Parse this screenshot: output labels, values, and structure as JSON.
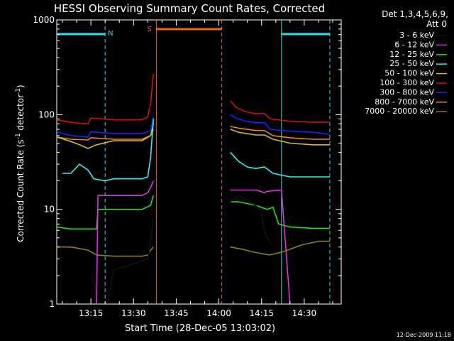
{
  "chart_data": {
    "type": "line",
    "title": "HESSI Observing Summary Count Rates, Corrected",
    "xlabel": "Start Time (28-Dec-05 13:03:02)",
    "ylabel": "Corrected Count Rate (s⁻¹ detector⁻¹)",
    "ylabel_parts": {
      "main": "Corrected Count Rate (s",
      "sup1": "-1",
      "mid": " detector",
      "sup2": "-1",
      "end": ")"
    },
    "yscale": "log",
    "ylim": [
      1,
      1000
    ],
    "xlim_minutes": [
      0,
      100
    ],
    "x_tick_minutes": [
      12,
      27,
      42,
      57,
      72,
      87
    ],
    "x_tick_labels": [
      "13:15",
      "13:30",
      "13:45",
      "14:00",
      "14:15",
      "14:30"
    ],
    "y_ticks": [
      1,
      10,
      100,
      1000
    ],
    "y_tick_labels": [
      "1",
      "10",
      "100",
      "1000"
    ],
    "legend_header": [
      "Det 1,3,4,5,6,9,",
      "Att 0"
    ],
    "footer_date": "12-Dec-2009 11:18",
    "markers": {
      "night_label": "N",
      "saa_label": "S",
      "night_color": "#33d9e6",
      "saa_color": "#f06a10",
      "night_bars": [
        [
          0,
          17
        ],
        [
          79,
          96
        ]
      ],
      "night_lines_minutes": [
        17,
        79,
        96
      ],
      "saa_bar": [
        35,
        58
      ],
      "saa_lines_minutes": [
        35,
        58
      ]
    },
    "series": [
      {
        "name": "3 - 6 keV",
        "color": "#111111",
        "segments": [
          [
            [
              18,
              1.1
            ],
            [
              20,
              2.3
            ],
            [
              26,
              2.6
            ],
            [
              32,
              3.0
            ],
            [
              33,
              4.5
            ],
            [
              34,
              8
            ]
          ],
          [
            [
              61,
              12
            ],
            [
              64,
              14
            ],
            [
              66,
              13
            ],
            [
              70,
              11
            ],
            [
              72,
              9
            ],
            [
              73,
              6
            ],
            [
              74,
              5
            ],
            [
              75,
              4.5
            ],
            [
              76,
              4.3
            ]
          ]
        ]
      },
      {
        "name": "6 - 12 keV",
        "color": "#e030e0",
        "segments": [
          [
            [
              14,
              1.0
            ],
            [
              14.5,
              14
            ],
            [
              20,
              14
            ],
            [
              30,
              14
            ],
            [
              32,
              15
            ],
            [
              33,
              17
            ],
            [
              34,
              20
            ]
          ],
          [
            [
              61,
              16
            ],
            [
              65,
              16
            ],
            [
              70,
              16
            ],
            [
              73,
              15
            ],
            [
              74,
              15.5
            ],
            [
              79,
              16
            ],
            [
              82,
              1.0
            ]
          ]
        ]
      },
      {
        "name": "12 - 25 keV",
        "color": "#20e020",
        "segments": [
          [
            [
              0,
              6.5
            ],
            [
              5,
              6.2
            ],
            [
              14,
              6.2
            ],
            [
              14.5,
              10
            ],
            [
              20,
              10
            ],
            [
              30,
              10
            ],
            [
              33,
              11
            ],
            [
              34,
              14
            ]
          ],
          [
            [
              61,
              12
            ],
            [
              64,
              12
            ],
            [
              70,
              11
            ],
            [
              74,
              10
            ],
            [
              76,
              10.5
            ],
            [
              78,
              7
            ],
            [
              82,
              6.5
            ],
            [
              90,
              6.3
            ],
            [
              96,
              6.3
            ]
          ]
        ]
      },
      {
        "name": "25 - 50 keV",
        "color": "#30f0f0",
        "segments": [
          [
            [
              2,
              24
            ],
            [
              5,
              24
            ],
            [
              8,
              30
            ],
            [
              11,
              26
            ],
            [
              13,
              21
            ],
            [
              17,
              20
            ],
            [
              20,
              21
            ],
            [
              30,
              21
            ],
            [
              32,
              22
            ],
            [
              33,
              35
            ],
            [
              34,
              90
            ]
          ],
          [
            [
              61,
              40
            ],
            [
              64,
              32
            ],
            [
              67,
              28
            ],
            [
              70,
              27
            ],
            [
              73,
              28
            ],
            [
              76,
              24
            ],
            [
              82,
              22
            ],
            [
              90,
              22
            ],
            [
              96,
              22
            ]
          ]
        ]
      },
      {
        "name": "50 - 100 keV",
        "color": "#d0c020",
        "segments": [
          [
            [
              0,
              58
            ],
            [
              5,
              52
            ],
            [
              8,
              48
            ],
            [
              11,
              44
            ],
            [
              14,
              48
            ],
            [
              20,
              53
            ],
            [
              30,
              53
            ],
            [
              33,
              60
            ],
            [
              34,
              80
            ]
          ],
          [
            [
              61,
              70
            ],
            [
              64,
              65
            ],
            [
              70,
              61
            ],
            [
              73,
              61
            ],
            [
              76,
              55
            ],
            [
              82,
              50
            ],
            [
              90,
              48
            ],
            [
              96,
              48
            ]
          ]
        ]
      },
      {
        "name": "100 - 300 keV",
        "color": "#d01010",
        "segments": [
          [
            [
              0,
              88
            ],
            [
              6,
              82
            ],
            [
              11,
              80
            ],
            [
              12,
              92
            ],
            [
              20,
              88
            ],
            [
              30,
              88
            ],
            [
              32,
              95
            ],
            [
              33,
              130
            ],
            [
              34,
              270
            ]
          ],
          [
            [
              61,
              140
            ],
            [
              63,
              120
            ],
            [
              66,
              108
            ],
            [
              70,
              102
            ],
            [
              73,
              103
            ],
            [
              75,
              90
            ],
            [
              82,
              85
            ],
            [
              90,
              83
            ],
            [
              96,
              83
            ]
          ]
        ]
      },
      {
        "name": "300 - 800 keV",
        "color": "#2020ff",
        "segments": [
          [
            [
              0,
              66
            ],
            [
              5,
              60
            ],
            [
              11,
              58
            ],
            [
              12,
              66
            ],
            [
              20,
              63
            ],
            [
              30,
              63
            ],
            [
              33,
              68
            ],
            [
              34,
              95
            ]
          ],
          [
            [
              61,
              100
            ],
            [
              63,
              92
            ],
            [
              66,
              86
            ],
            [
              70,
              82
            ],
            [
              73,
              82
            ],
            [
              75,
              70
            ],
            [
              82,
              67
            ],
            [
              90,
              65
            ],
            [
              96,
              62
            ]
          ]
        ]
      },
      {
        "name": "800 - 7000 keV",
        "color": "#f08020",
        "segments": [
          [
            [
              0,
              58
            ],
            [
              5,
              55
            ],
            [
              11,
              54
            ],
            [
              12,
              57
            ],
            [
              20,
              55
            ],
            [
              30,
              55
            ],
            [
              33,
              60
            ],
            [
              34,
              70
            ]
          ],
          [
            [
              61,
              75
            ],
            [
              64,
              72
            ],
            [
              70,
              68
            ],
            [
              73,
              68
            ],
            [
              76,
              60
            ],
            [
              82,
              57
            ],
            [
              90,
              55
            ],
            [
              96,
              55
            ]
          ]
        ]
      },
      {
        "name": "7000 - 20000 keV",
        "color": "#8a8010",
        "segments": [
          [
            [
              0,
              4.0
            ],
            [
              5,
              4.0
            ],
            [
              11,
              3.7
            ],
            [
              14,
              3.3
            ],
            [
              20,
              3.2
            ],
            [
              30,
              3.2
            ],
            [
              32,
              3.3
            ],
            [
              33,
              3.7
            ],
            [
              34,
              4.0
            ]
          ],
          [
            [
              61,
              4.0
            ],
            [
              65,
              3.8
            ],
            [
              70,
              3.5
            ],
            [
              75,
              3.3
            ],
            [
              80,
              3.6
            ],
            [
              86,
              4.2
            ],
            [
              92,
              4.6
            ],
            [
              96,
              4.6
            ]
          ]
        ]
      }
    ]
  }
}
